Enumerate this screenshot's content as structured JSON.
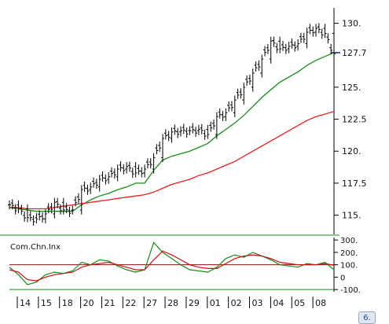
{
  "chart_data": [
    {
      "type": "line",
      "title": "",
      "xlabel": "",
      "ylabel": "",
      "ylim": [
        113.5,
        131.2
      ],
      "y_ticks": [
        "130.",
        "127.7",
        "125.",
        "122.5",
        "120.",
        "117.5",
        "115."
      ],
      "y_tick_values": [
        130,
        127.7,
        125,
        122.5,
        120,
        117.5,
        115
      ],
      "last_price_label": "127.7",
      "last_price": 127.7,
      "grid": false,
      "x": [
        0,
        3,
        6,
        9,
        12,
        15,
        18,
        21,
        24,
        27,
        30,
        33,
        36,
        39,
        42,
        45,
        48,
        51,
        54,
        57,
        60,
        63,
        66,
        69,
        72,
        75,
        78,
        81,
        84,
        87,
        90,
        93,
        96,
        99,
        102,
        105,
        108
      ],
      "series": [
        {
          "style": "price-bars",
          "color": "#000000",
          "values": [
            115.8,
            115.5,
            114.8,
            114.7,
            115.1,
            116.0,
            115.4,
            115.4,
            117.0,
            117.2,
            117.8,
            118.0,
            118.6,
            118.8,
            118.3,
            118.6,
            119.5,
            121.0,
            121.5,
            121.6,
            121.6,
            121.7,
            121.3,
            122.7,
            123.0,
            124.0,
            125.0,
            126.1,
            127.2,
            128.6,
            128.0,
            128.2,
            128.4,
            129.3,
            129.6,
            129.2,
            127.6
          ]
        },
        {
          "style": "moving-average",
          "color": "#1a8a1a",
          "values": [
            115.6,
            115.5,
            115.4,
            115.3,
            115.3,
            115.3,
            115.3,
            115.3,
            115.8,
            116.2,
            116.5,
            116.7,
            117.0,
            117.2,
            117.5,
            117.5,
            118.5,
            119.3,
            119.6,
            119.8,
            120.0,
            120.3,
            120.6,
            121.2,
            121.7,
            122.2,
            122.8,
            123.5,
            124.2,
            124.8,
            125.4,
            125.8,
            126.2,
            126.7,
            127.1,
            127.4,
            127.7
          ]
        },
        {
          "style": "moving-average",
          "color": "#e82020",
          "values": [
            115.6,
            115.6,
            115.5,
            115.5,
            115.5,
            115.6,
            115.7,
            115.8,
            115.9,
            116.0,
            116.1,
            116.2,
            116.3,
            116.4,
            116.5,
            116.6,
            116.8,
            117.1,
            117.4,
            117.6,
            117.8,
            118.1,
            118.3,
            118.6,
            118.9,
            119.2,
            119.6,
            120.0,
            120.4,
            120.8,
            121.2,
            121.6,
            122.0,
            122.4,
            122.7,
            122.9,
            123.1
          ]
        }
      ]
    },
    {
      "type": "line",
      "title": "Com.Chn.Inx",
      "ylim": [
        -118,
        320
      ],
      "y_ticks": [
        "300.",
        "200.",
        "100.",
        "0",
        "-100."
      ],
      "y_tick_values": [
        300,
        200,
        100,
        0,
        -100
      ],
      "reference_lines": [
        100,
        -100
      ],
      "x": [
        0,
        3,
        6,
        9,
        12,
        15,
        18,
        21,
        24,
        27,
        30,
        33,
        36,
        39,
        42,
        45,
        48,
        51,
        54,
        57,
        60,
        63,
        66,
        69,
        72,
        75,
        78,
        81,
        84,
        87,
        90,
        93,
        96,
        99,
        102,
        105,
        108
      ],
      "series": [
        {
          "color": "#1a8a1a",
          "values": [
            80,
            20,
            -60,
            -40,
            20,
            40,
            30,
            50,
            120,
            100,
            140,
            130,
            90,
            60,
            40,
            60,
            280,
            200,
            150,
            100,
            60,
            50,
            40,
            80,
            150,
            180,
            160,
            200,
            170,
            140,
            100,
            90,
            80,
            110,
            100,
            120,
            60
          ]
        },
        {
          "color": "#cc1111",
          "values": [
            60,
            40,
            -20,
            -30,
            0,
            20,
            30,
            40,
            80,
            100,
            110,
            120,
            100,
            80,
            60,
            60,
            140,
            210,
            180,
            140,
            100,
            80,
            70,
            70,
            110,
            150,
            170,
            180,
            170,
            150,
            120,
            110,
            100,
            100,
            100,
            110,
            95
          ]
        }
      ]
    }
  ],
  "x_axis": {
    "labels": [
      "14",
      "15",
      "18",
      "20",
      "21",
      "22",
      "27",
      "28",
      "29",
      "01",
      "02",
      "03",
      "04",
      "05",
      "08"
    ]
  },
  "corner_button": {
    "label": "6."
  }
}
